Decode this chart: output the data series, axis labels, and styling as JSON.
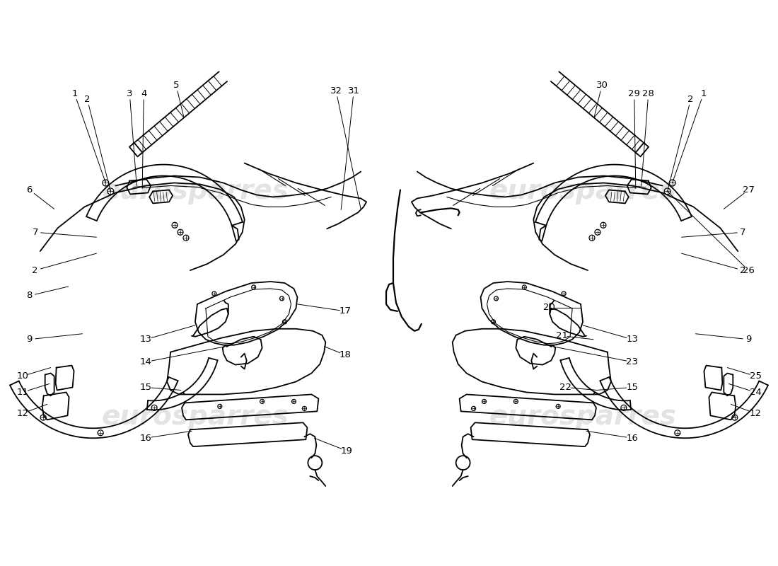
{
  "bg": "#ffffff",
  "lc": "#000000",
  "wm": "eurosparres",
  "wm_color": "#cccccc",
  "fs": 9.5
}
